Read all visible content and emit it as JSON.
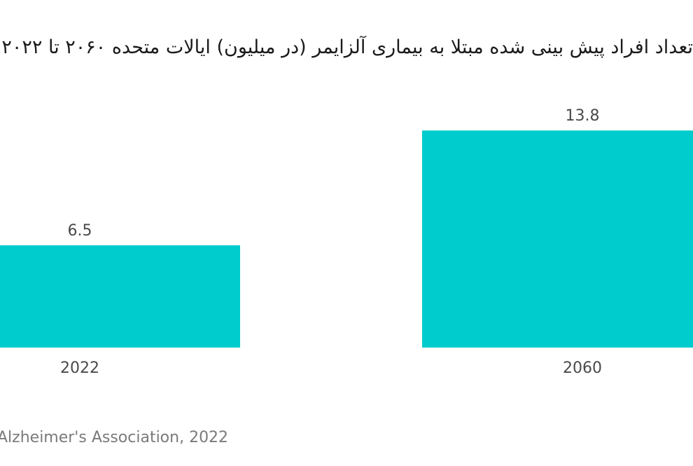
{
  "chart_data": {
    "type": "bar",
    "title": "تعداد افراد پیش بینی شده مبتلا به بیماری آلزایمر (در میلیون) ایالات متحده ۲۰۶۰ تا ۲۰۲۲",
    "categories": [
      "2022",
      "2060"
    ],
    "values": [
      6.5,
      13.8
    ],
    "value_labels": [
      "6.5",
      "13.8"
    ],
    "ylim": [
      0,
      14.3
    ],
    "grid": false,
    "bar_color": "#00cccd",
    "source": "Alzheimer's Association, 2022"
  }
}
